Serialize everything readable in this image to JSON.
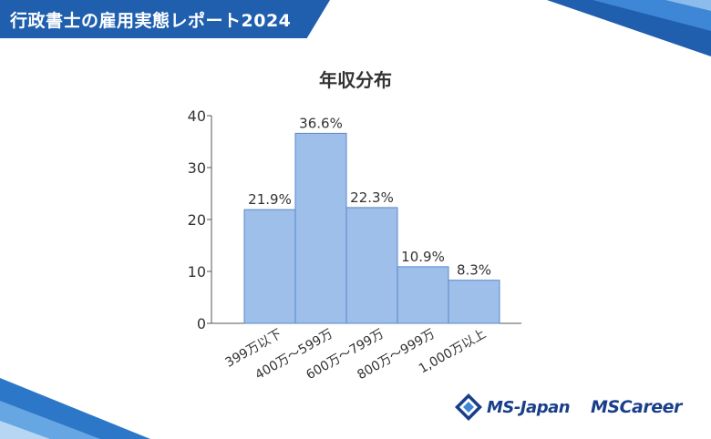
{
  "header": {
    "title": "行政書士の雇用実態レポート2024"
  },
  "colors": {
    "banner": "#1f5fae",
    "bar_fill": "#9dbfe9",
    "bar_stroke": "#5a87c9",
    "logo": "#1a3f8a"
  },
  "chart_data": {
    "type": "bar",
    "title": "年収分布",
    "categories": [
      "399万以下",
      "400万～599万",
      "600万～799万",
      "800万～999万",
      "1,000万以上"
    ],
    "values": [
      21.9,
      36.6,
      22.3,
      10.9,
      8.3
    ],
    "data_labels": [
      "21.9%",
      "36.6%",
      "22.3%",
      "10.9%",
      "8.3%"
    ],
    "ylim": [
      0,
      40
    ],
    "yticks": [
      0,
      10,
      20,
      30,
      40
    ],
    "grid": false
  },
  "logos": {
    "ms_japan": "MS-Japan",
    "ms_career": "MSCareer"
  }
}
